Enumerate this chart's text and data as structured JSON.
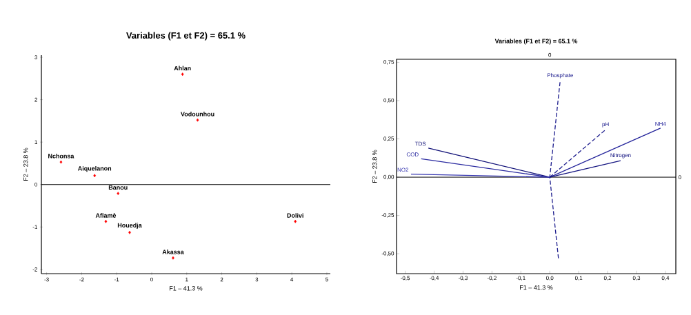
{
  "chart_data": [
    {
      "type": "scatter",
      "title": "Variables (F1 et F2) = 65.1 %",
      "xlabel": "F1 – 41.3 %",
      "ylabel": "F2 – 23.8 %",
      "x": [
        0.88,
        1.31,
        -2.59,
        -1.63,
        -0.96,
        -1.31,
        -0.63,
        0.61,
        4.1
      ],
      "values": [
        2.6,
        1.52,
        0.53,
        0.21,
        -0.21,
        -0.87,
        -1.13,
        -1.73,
        -0.87
      ],
      "color": "#ff0000",
      "marker": "diamond",
      "xlim": [
        -3.15,
        5.1
      ],
      "ylim": [
        -2.1,
        3.05
      ],
      "xticks": [
        -3,
        -2,
        -1,
        0,
        1,
        2,
        3,
        4,
        5
      ],
      "yticks": [
        -2,
        -1,
        0,
        1,
        2,
        3
      ],
      "ref_lines": [
        {
          "axis": "y",
          "value": 0,
          "color": "#000000"
        }
      ],
      "annotations": [
        {
          "text": "Ahlan",
          "x": 0.88,
          "y": 2.6
        },
        {
          "text": "Vodounhou",
          "x": 1.31,
          "y": 1.52
        },
        {
          "text": "Nchonsa",
          "x": -2.59,
          "y": 0.53
        },
        {
          "text": "Aiquelanon",
          "x": -1.63,
          "y": 0.21
        },
        {
          "text": "Banou",
          "x": -0.96,
          "y": -0.21
        },
        {
          "text": "Aflamè",
          "x": -1.31,
          "y": -0.87
        },
        {
          "text": "Houedja",
          "x": -0.63,
          "y": -1.13
        },
        {
          "text": "Akassa",
          "x": 0.61,
          "y": -1.73
        },
        {
          "text": "Dolivi",
          "x": 4.1,
          "y": -0.87
        }
      ]
    },
    {
      "type": "line",
      "title": "Variables (F1 et F2) = 65.1 %",
      "xlabel": "F1 – 41.3 %",
      "ylabel": "F2 – 23.8 %",
      "series": [
        {
          "name": "Phosphate",
          "color": "#1a1a8c",
          "line_style": "dashed",
          "x": [
            0.03,
            0,
            0.036
          ],
          "values": [
            -0.53,
            0,
            0.63
          ]
        },
        {
          "name": "pH",
          "color": "#1a1a8c",
          "line_style": "dashed",
          "x": [
            0,
            0.193
          ],
          "values": [
            0,
            0.31
          ]
        },
        {
          "name": "NH4",
          "color": "#22229a",
          "line_style": "solid",
          "x": [
            0,
            0.383
          ],
          "values": [
            0,
            0.32
          ]
        },
        {
          "name": "Nitrogen",
          "color": "#141480",
          "line_style": "solid",
          "x": [
            0,
            0.245
          ],
          "values": [
            0,
            0.108
          ]
        },
        {
          "name": "TDS",
          "color": "#101078",
          "line_style": "solid",
          "x": [
            0,
            -0.42
          ],
          "values": [
            0,
            0.19
          ]
        },
        {
          "name": "COD",
          "color": "#2a2aa0",
          "line_style": "solid",
          "x": [
            0,
            -0.445
          ],
          "values": [
            0,
            0.12
          ]
        },
        {
          "name": "NO2",
          "color": "#3636b0",
          "line_style": "solid",
          "x": [
            0,
            -0.48
          ],
          "values": [
            0,
            0.02
          ]
        }
      ],
      "xlim": [
        -0.53,
        0.436
      ],
      "ylim": [
        -0.63,
        0.77
      ],
      "xticks": [
        {
          "value": -0.5,
          "label": "-0,5"
        },
        {
          "value": -0.4,
          "label": "-0,4"
        },
        {
          "value": -0.3,
          "label": "-0,3"
        },
        {
          "value": -0.2,
          "label": "-0,2"
        },
        {
          "value": -0.1,
          "label": "-0,1"
        },
        {
          "value": 0,
          "label": "0,0"
        },
        {
          "value": 0.1,
          "label": "0,1"
        },
        {
          "value": 0.2,
          "label": "0,2"
        },
        {
          "value": 0.3,
          "label": "0,3"
        },
        {
          "value": 0.4,
          "label": "0,4"
        }
      ],
      "yticks": [
        {
          "value": -0.5,
          "label": "-0,50"
        },
        {
          "value": -0.25,
          "label": "-0,25"
        },
        {
          "value": 0,
          "label": "0,00"
        },
        {
          "value": 0.25,
          "label": "0,25"
        },
        {
          "value": 0.5,
          "label": "0,50"
        },
        {
          "value": 0.75,
          "label": "0,75"
        }
      ],
      "ref_lines": [
        {
          "axis": "y",
          "value": 0,
          "color": "#000000"
        }
      ],
      "annotations": [
        "0",
        "0"
      ],
      "marker": "none"
    }
  ]
}
